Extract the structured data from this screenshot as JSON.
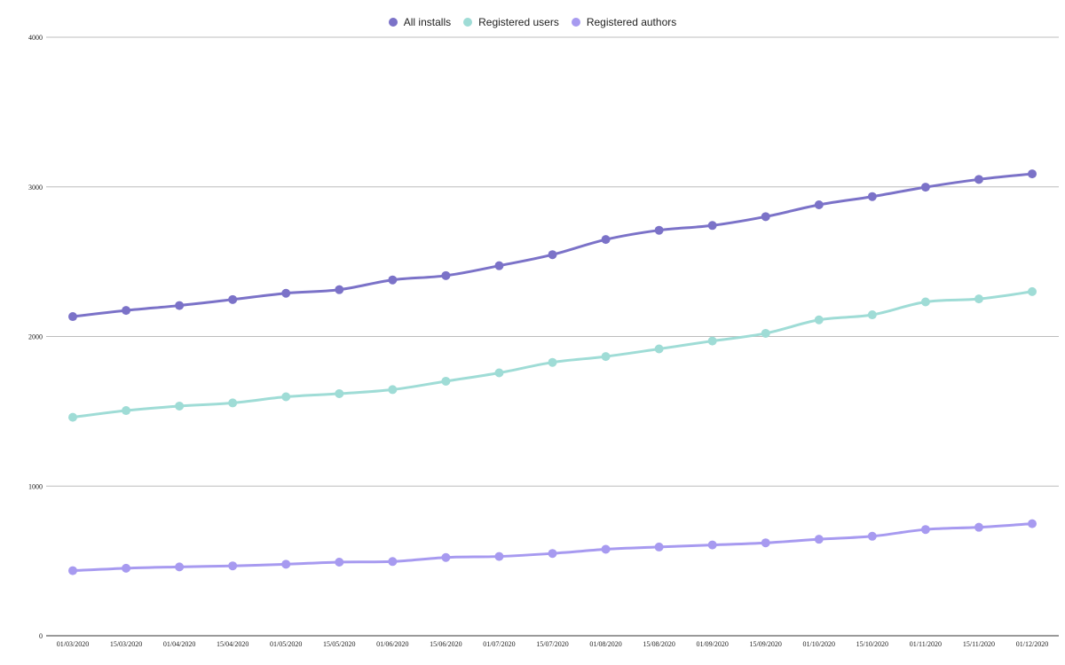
{
  "chart_data": {
    "type": "line",
    "title": "",
    "xlabel": "",
    "ylabel": "",
    "ylim": [
      0,
      4000
    ],
    "yticks": [
      "0",
      "1000",
      "2000",
      "3000",
      "4000"
    ],
    "grid": "horizontal",
    "legend_position": "top-center",
    "categories": [
      "01/03/2020",
      "15/03/2020",
      "01/04/2020",
      "15/04/2020",
      "01/05/2020",
      "15/05/2020",
      "01/06/2020",
      "15/06/2020",
      "01/07/2020",
      "15/07/2020",
      "01/08/2020",
      "15/08/2020",
      "01/09/2020",
      "15/09/2020",
      "01/10/2020",
      "15/10/2020",
      "01/11/2020",
      "15/11/2020",
      "01/12/2020"
    ],
    "series": [
      {
        "name": "All installs",
        "color": "#7b72c8",
        "values": [
          2133,
          2174,
          2207,
          2247,
          2289,
          2313,
          2378,
          2407,
          2473,
          2547,
          2648,
          2710,
          2742,
          2801,
          2880,
          2935,
          2998,
          3050,
          3087
        ]
      },
      {
        "name": "Registered users",
        "color": "#9fdcd6",
        "values": [
          1460,
          1505,
          1535,
          1556,
          1597,
          1618,
          1645,
          1701,
          1757,
          1827,
          1866,
          1917,
          1970,
          2021,
          2111,
          2145,
          2231,
          2251,
          2300
        ]
      },
      {
        "name": "Registered authors",
        "color": "#a79af0",
        "values": [
          435,
          451,
          460,
          467,
          478,
          492,
          496,
          523,
          530,
          550,
          578,
          593,
          607,
          621,
          645,
          665,
          710,
          725,
          749
        ]
      }
    ]
  }
}
